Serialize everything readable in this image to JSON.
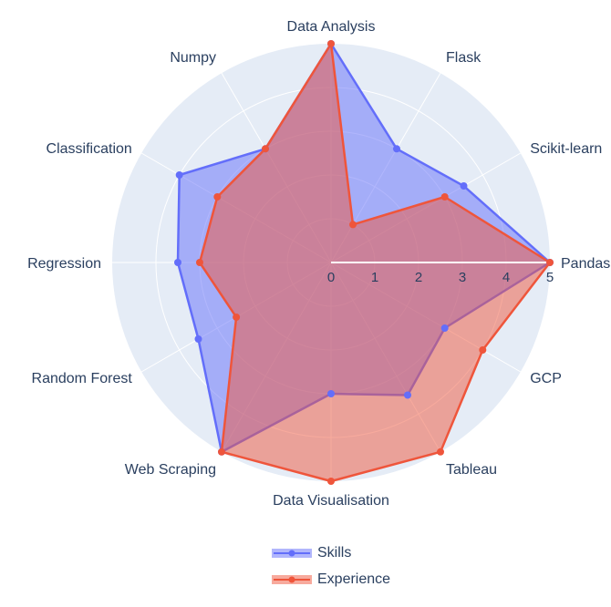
{
  "chart_data": {
    "type": "radar",
    "axes": [
      "Pandas",
      "Scikit-learn",
      "Flask",
      "Data Analysis",
      "Numpy",
      "Classification",
      "Regression",
      "Random Forest",
      "Web Scraping",
      "Data Visualisation",
      "Tableau",
      "GCP"
    ],
    "radial_ticks": [
      "0",
      "1",
      "2",
      "3",
      "4",
      "5"
    ],
    "rlim": [
      0,
      5
    ],
    "series": [
      {
        "name": "Skills",
        "color": "#636efa",
        "values": [
          5,
          3.5,
          3,
          5,
          3,
          4,
          3.5,
          3.5,
          5,
          3,
          3.5,
          3
        ]
      },
      {
        "name": "Experience",
        "color": "#ef553b",
        "values": [
          5,
          3,
          1,
          5,
          3,
          3,
          3,
          2.5,
          5,
          5,
          5,
          4
        ]
      }
    ],
    "grid": true,
    "legend_position": "bottom"
  },
  "legend": {
    "items": [
      {
        "label": "Skills",
        "color": "#636efa"
      },
      {
        "label": "Experience",
        "color": "#ef553b"
      }
    ]
  }
}
